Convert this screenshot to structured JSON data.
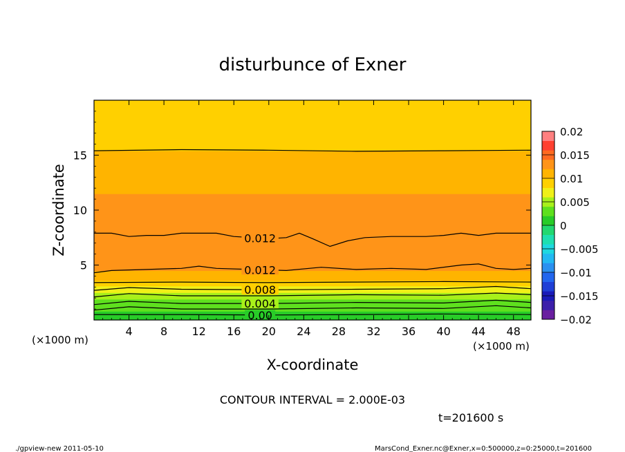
{
  "chart_data": {
    "type": "heatmap",
    "subtype": "filled-contour",
    "title": "disturbunce of Exner",
    "xlabel": "X-coordinate",
    "ylabel": "Z-coordinate",
    "x_unit_label": "(×1000 m)",
    "z_unit_label": "(×1000 m)",
    "xlim": [
      0,
      50
    ],
    "ylim": [
      0,
      20
    ],
    "x_ticks": [
      4,
      8,
      12,
      16,
      20,
      24,
      28,
      32,
      36,
      40,
      44,
      48
    ],
    "y_ticks": [
      5,
      10,
      15
    ],
    "grid": false,
    "colorbar": {
      "position": "right",
      "min": -0.02,
      "max": 0.02,
      "tick_values": [
        0.02,
        0.015,
        0.01,
        0.005,
        0,
        -0.005,
        -0.01,
        -0.015,
        -0.02
      ],
      "tick_labels": [
        "0.02",
        "0.015",
        "0.01",
        "0.005",
        "0",
        "−0.005",
        "−0.01",
        "−0.015",
        "−0.02"
      ],
      "levels": [
        {
          "lo": -0.02,
          "color": "#6a1fa0"
        },
        {
          "lo": -0.018,
          "color": "#3c1faa"
        },
        {
          "lo": -0.016,
          "color": "#1a1ab8"
        },
        {
          "lo": -0.014,
          "color": "#1f3fd6"
        },
        {
          "lo": -0.012,
          "color": "#2266ee"
        },
        {
          "lo": -0.01,
          "color": "#2a90f0"
        },
        {
          "lo": -0.008,
          "color": "#22b8f2"
        },
        {
          "lo": -0.006,
          "color": "#1ed8e0"
        },
        {
          "lo": -0.004,
          "color": "#1edfb0"
        },
        {
          "lo": -0.002,
          "color": "#22d870"
        },
        {
          "lo": 0.0,
          "color": "#28cc28"
        },
        {
          "lo": 0.002,
          "color": "#5ee01e"
        },
        {
          "lo": 0.004,
          "color": "#a8f01a"
        },
        {
          "lo": 0.006,
          "color": "#f0f018"
        },
        {
          "lo": 0.008,
          "color": "#ffd000"
        },
        {
          "lo": 0.01,
          "color": "#ffb400"
        },
        {
          "lo": 0.012,
          "color": "#ff9418"
        },
        {
          "lo": 0.014,
          "color": "#ff6a20"
        },
        {
          "lo": 0.016,
          "color": "#ff4030"
        },
        {
          "lo": 0.018,
          "color": "#ff8080"
        }
      ]
    },
    "bands": [
      {
        "z0": 0.0,
        "z1": 0.4,
        "value": 0.0
      },
      {
        "z0": 0.4,
        "z1": 0.8,
        "value": 0.001
      },
      {
        "z0": 0.8,
        "z1": 1.3,
        "value": 0.002
      },
      {
        "z0": 1.3,
        "z1": 1.9,
        "value": 0.003
      },
      {
        "z0": 1.9,
        "z1": 2.5,
        "value": 0.005
      },
      {
        "z0": 2.5,
        "z1": 3.1,
        "value": 0.007
      },
      {
        "z0": 3.1,
        "z1": 3.6,
        "value": 0.009
      },
      {
        "z0": 3.6,
        "z1": 4.5,
        "value": 0.011
      },
      {
        "z0": 4.5,
        "z1": 8.0,
        "value": 0.0135
      },
      {
        "z0": 8.0,
        "z1": 11.5,
        "value": 0.012
      },
      {
        "z0": 11.5,
        "z1": 15.4,
        "value": 0.0105
      },
      {
        "z0": 15.4,
        "z1": 18.2,
        "value": 0.0095
      },
      {
        "z0": 18.2,
        "z1": 20.0,
        "value": 0.0085
      }
    ],
    "contour_lines": [
      {
        "value": 0.0,
        "label": "0.00",
        "label_x": 19,
        "pts": [
          [
            0,
            0.5
          ],
          [
            10,
            0.5
          ],
          [
            20,
            0.45
          ],
          [
            30,
            0.5
          ],
          [
            40,
            0.55
          ],
          [
            50,
            0.5
          ]
        ]
      },
      {
        "value": 0.002,
        "label": "",
        "pts": [
          [
            0,
            0.9
          ],
          [
            4,
            1.2
          ],
          [
            10,
            1.0
          ],
          [
            20,
            1.0
          ],
          [
            30,
            1.1
          ],
          [
            40,
            1.05
          ],
          [
            46,
            1.3
          ],
          [
            50,
            1.1
          ]
        ]
      },
      {
        "value": 0.004,
        "label": "0.004",
        "label_x": 19,
        "pts": [
          [
            0,
            1.4
          ],
          [
            4,
            1.7
          ],
          [
            10,
            1.5
          ],
          [
            20,
            1.5
          ],
          [
            30,
            1.6
          ],
          [
            40,
            1.55
          ],
          [
            46,
            1.8
          ],
          [
            50,
            1.6
          ]
        ]
      },
      {
        "value": 0.006,
        "label": "",
        "pts": [
          [
            0,
            2.1
          ],
          [
            4,
            2.4
          ],
          [
            10,
            2.2
          ],
          [
            20,
            2.2
          ],
          [
            30,
            2.3
          ],
          [
            40,
            2.25
          ],
          [
            46,
            2.45
          ],
          [
            50,
            2.3
          ]
        ]
      },
      {
        "value": 0.008,
        "label": "0.008",
        "label_x": 19,
        "pts": [
          [
            0,
            2.7
          ],
          [
            4,
            2.95
          ],
          [
            10,
            2.8
          ],
          [
            20,
            2.75
          ],
          [
            30,
            2.8
          ],
          [
            40,
            2.85
          ],
          [
            46,
            3.05
          ],
          [
            50,
            2.85
          ]
        ]
      },
      {
        "value": 0.01,
        "label": "",
        "pts": [
          [
            0,
            3.4
          ],
          [
            10,
            3.45
          ],
          [
            20,
            3.4
          ],
          [
            30,
            3.45
          ],
          [
            40,
            3.5
          ],
          [
            50,
            3.45
          ]
        ]
      },
      {
        "value": 0.012,
        "label": "0.012",
        "label_x": 19,
        "pts": [
          [
            0,
            4.3
          ],
          [
            2,
            4.5
          ],
          [
            6,
            4.6
          ],
          [
            10,
            4.7
          ],
          [
            12,
            4.9
          ],
          [
            14,
            4.7
          ],
          [
            18,
            4.6
          ],
          [
            22,
            4.5
          ],
          [
            26,
            4.8
          ],
          [
            30,
            4.6
          ],
          [
            34,
            4.7
          ],
          [
            38,
            4.6
          ],
          [
            42,
            5.0
          ],
          [
            44,
            5.1
          ],
          [
            46,
            4.7
          ],
          [
            48,
            4.6
          ],
          [
            50,
            4.7
          ]
        ]
      },
      {
        "value": 0.012,
        "label": "0.012",
        "label_x": 19,
        "pts": [
          [
            0,
            7.9
          ],
          [
            2,
            7.9
          ],
          [
            4,
            7.6
          ],
          [
            6,
            7.7
          ],
          [
            8,
            7.7
          ],
          [
            10,
            7.9
          ],
          [
            12,
            7.9
          ],
          [
            14,
            7.9
          ],
          [
            16,
            7.6
          ],
          [
            20,
            7.4
          ],
          [
            22,
            7.5
          ],
          [
            23.5,
            7.9
          ],
          [
            25,
            7.4
          ],
          [
            27,
            6.7
          ],
          [
            29,
            7.2
          ],
          [
            31,
            7.5
          ],
          [
            34,
            7.6
          ],
          [
            38,
            7.6
          ],
          [
            40,
            7.7
          ],
          [
            42,
            7.9
          ],
          [
            44,
            7.7
          ],
          [
            46,
            7.9
          ],
          [
            50,
            7.9
          ]
        ]
      },
      {
        "value": 0.01,
        "label": "",
        "pts": [
          [
            0,
            15.4
          ],
          [
            10,
            15.5
          ],
          [
            20,
            15.45
          ],
          [
            30,
            15.35
          ],
          [
            40,
            15.4
          ],
          [
            50,
            15.45
          ]
        ]
      }
    ],
    "contour_interval_text": "CONTOUR INTERVAL = 2.000E-03",
    "time_text": "t=201600 s"
  },
  "footer": {
    "left": "./gpview-new   2011-05-10",
    "right": "MarsCond_Exner.nc@Exner,x=0:500000,z=0:25000,t=201600"
  }
}
